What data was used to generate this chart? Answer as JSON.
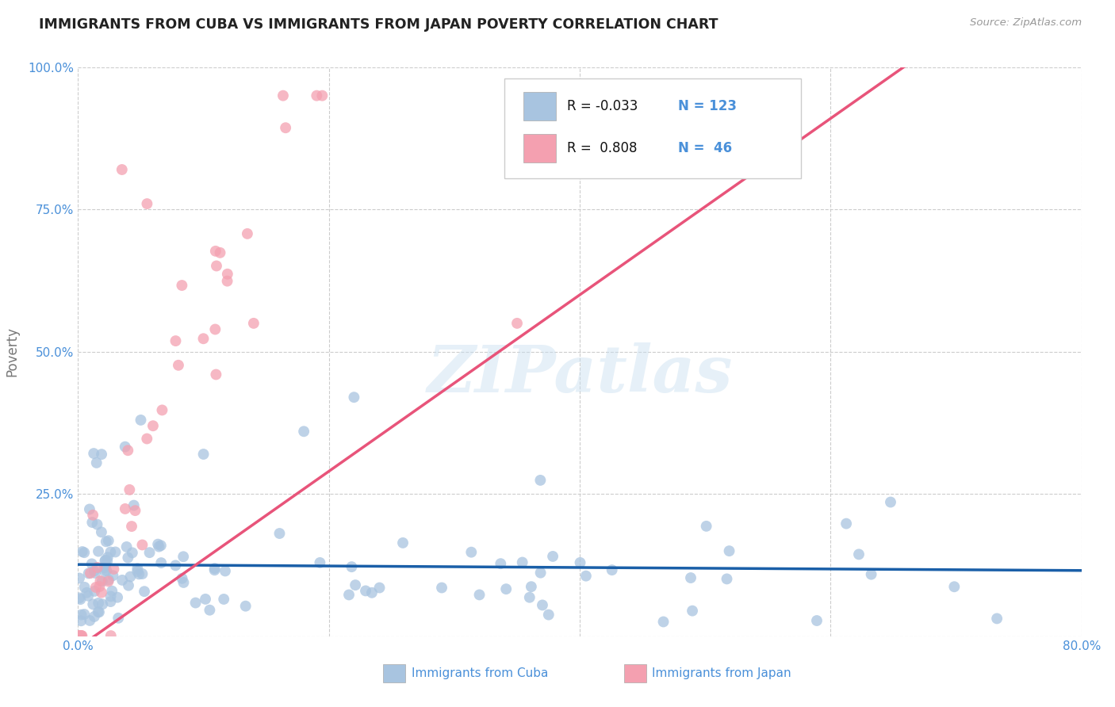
{
  "title": "IMMIGRANTS FROM CUBA VS IMMIGRANTS FROM JAPAN POVERTY CORRELATION CHART",
  "source": "Source: ZipAtlas.com",
  "ylabel": "Poverty",
  "xlim": [
    0.0,
    0.8
  ],
  "ylim": [
    0.0,
    1.0
  ],
  "xticks": [
    0.0,
    0.2,
    0.4,
    0.6,
    0.8
  ],
  "yticks": [
    0.0,
    0.25,
    0.5,
    0.75,
    1.0
  ],
  "xticklabels": [
    "0.0%",
    "",
    "",
    "",
    "80.0%"
  ],
  "yticklabels": [
    "",
    "25.0%",
    "50.0%",
    "75.0%",
    "100.0%"
  ],
  "cuba_color": "#a8c4e0",
  "japan_color": "#f4a0b0",
  "cuba_line_color": "#1a5fa8",
  "japan_line_color": "#e8547a",
  "cuba_R": -0.033,
  "cuba_N": 123,
  "japan_R": 0.808,
  "japan_N": 46,
  "legend_label_cuba": "Immigrants from Cuba",
  "legend_label_japan": "Immigrants from Japan",
  "watermark": "ZIPatlas",
  "background_color": "#ffffff",
  "grid_color": "#cccccc",
  "title_color": "#222222",
  "axis_label_color": "#777777",
  "tick_color": "#4a90d9",
  "legend_R_color": "#111111",
  "legend_N_color": "#4a90d9"
}
